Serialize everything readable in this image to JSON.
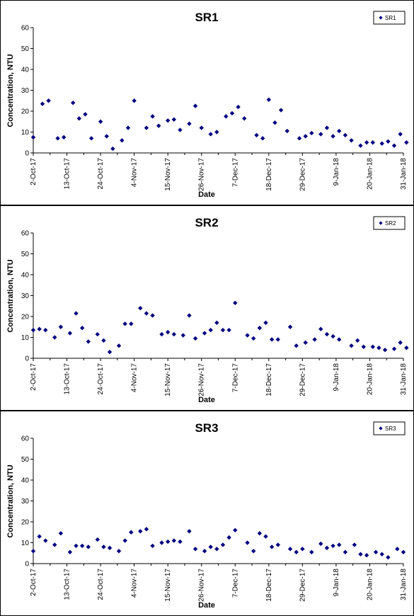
{
  "chart_data": [
    {
      "type": "scatter",
      "title": "SR1",
      "xlabel": "Date",
      "ylabel": "Concentration, NTU",
      "ylim": [
        0,
        60
      ],
      "yticks": [
        0,
        10,
        20,
        30,
        40,
        50,
        60
      ],
      "xlim": [
        "2017-10-02",
        "2018-01-31"
      ],
      "xtick_labels": [
        "2-Oct-17",
        "13-Oct-17",
        "24-Oct-17",
        "4-Nov-17",
        "15-Nov-17",
        "26-Nov-17",
        "7-Dec-17",
        "18-Dec-17",
        "29-Dec-17",
        "9-Jan-18",
        "20-Jan-18",
        "31-Jan-18"
      ],
      "legend": "top-right",
      "grid": false,
      "marker_color": "#000080",
      "series": [
        {
          "name": "SR1",
          "x": [
            "2017-10-02",
            "2017-10-05",
            "2017-10-07",
            "2017-10-10",
            "2017-10-12",
            "2017-10-15",
            "2017-10-17",
            "2017-10-19",
            "2017-10-21",
            "2017-10-24",
            "2017-10-26",
            "2017-10-28",
            "2017-10-31",
            "2017-11-02",
            "2017-11-04",
            "2017-11-08",
            "2017-11-10",
            "2017-11-12",
            "2017-11-15",
            "2017-11-17",
            "2017-11-19",
            "2017-11-22",
            "2017-11-24",
            "2017-11-26",
            "2017-11-29",
            "2017-12-01",
            "2017-12-04",
            "2017-12-06",
            "2017-12-08",
            "2017-12-10",
            "2017-12-14",
            "2017-12-16",
            "2017-12-18",
            "2017-12-20",
            "2017-12-22",
            "2017-12-24",
            "2017-12-28",
            "2017-12-30",
            "2018-01-01",
            "2018-01-04",
            "2018-01-06",
            "2018-01-08",
            "2018-01-10",
            "2018-01-12",
            "2018-01-14",
            "2018-01-17",
            "2018-01-19",
            "2018-01-21",
            "2018-01-24",
            "2018-01-26",
            "2018-01-28",
            "2018-01-30",
            "2018-02-01"
          ],
          "y": [
            7.5,
            23.5,
            25,
            7,
            7.5,
            24,
            16.5,
            18.5,
            7,
            15,
            8,
            2,
            6,
            12,
            25,
            12,
            17.5,
            13,
            15.5,
            16,
            11,
            14,
            22.5,
            12,
            9,
            10,
            17.5,
            19,
            22,
            16.5,
            8.5,
            7,
            25.5,
            14.5,
            20.5,
            10.5,
            7,
            8,
            9.5,
            9,
            12,
            8,
            10.5,
            8.5,
            6,
            3.5,
            5,
            5,
            4.5,
            5.5,
            3.5,
            9,
            5
          ]
        }
      ]
    },
    {
      "type": "scatter",
      "title": "SR2",
      "xlabel": "Date",
      "ylabel": "Concentration, NTU",
      "ylim": [
        0,
        60
      ],
      "yticks": [
        0,
        10,
        20,
        30,
        40,
        50,
        60
      ],
      "xlim": [
        "2017-10-02",
        "2018-01-31"
      ],
      "xtick_labels": [
        "2-Oct-17",
        "13-Oct-17",
        "24-Oct-17",
        "4-Nov-17",
        "15-Nov-17",
        "26-Nov-17",
        "7-Dec-17",
        "18-Dec-17",
        "29-Dec-17",
        "9-Jan-18",
        "20-Jan-18",
        "31-Jan-18"
      ],
      "legend": "top-right",
      "grid": false,
      "marker_color": "#000080",
      "series": [
        {
          "name": "SR2",
          "x": [
            "2017-10-02",
            "2017-10-04",
            "2017-10-06",
            "2017-10-09",
            "2017-10-11",
            "2017-10-14",
            "2017-10-16",
            "2017-10-18",
            "2017-10-20",
            "2017-10-23",
            "2017-10-25",
            "2017-10-27",
            "2017-10-30",
            "2017-11-01",
            "2017-11-03",
            "2017-11-06",
            "2017-11-08",
            "2017-11-10",
            "2017-11-13",
            "2017-11-15",
            "2017-11-17",
            "2017-11-20",
            "2017-11-22",
            "2017-11-24",
            "2017-11-27",
            "2017-11-29",
            "2017-12-01",
            "2017-12-03",
            "2017-12-05",
            "2017-12-07",
            "2017-12-11",
            "2017-12-13",
            "2017-12-15",
            "2017-12-17",
            "2017-12-19",
            "2017-12-21",
            "2017-12-25",
            "2017-12-27",
            "2017-12-30",
            "2018-01-02",
            "2018-01-04",
            "2018-01-06",
            "2018-01-08",
            "2018-01-10",
            "2018-01-14",
            "2018-01-16",
            "2018-01-18",
            "2018-01-21",
            "2018-01-23",
            "2018-01-25",
            "2018-01-28",
            "2018-01-30",
            "2018-02-01"
          ],
          "y": [
            13.5,
            14,
            13.5,
            10,
            15,
            12,
            21.5,
            14.5,
            8,
            11.5,
            8.5,
            3,
            6,
            16.5,
            16.5,
            24,
            21.5,
            20.5,
            11.5,
            12.5,
            11.5,
            11,
            20.5,
            9.5,
            12,
            13.5,
            17,
            13.5,
            13.5,
            26.5,
            11,
            9.5,
            14.5,
            17,
            9,
            9,
            15,
            6,
            7.5,
            9,
            14,
            11.5,
            10.5,
            9,
            6,
            8.5,
            5.5,
            5.5,
            5,
            4,
            4.5,
            7.5,
            5
          ]
        }
      ]
    },
    {
      "type": "scatter",
      "title": "SR3",
      "xlabel": "Date",
      "ylabel": "Concentration, NTU",
      "ylim": [
        0,
        60
      ],
      "yticks": [
        0,
        10,
        20,
        30,
        40,
        50,
        60
      ],
      "xlim": [
        "2017-10-02",
        "2018-01-31"
      ],
      "xtick_labels": [
        "2-Oct-17",
        "13-Oct-17",
        "24-Oct-17",
        "4-Nov-17",
        "15-Nov-17",
        "26-Nov-17",
        "7-Dec-17",
        "18-Dec-17",
        "29-Dec-17",
        "9-Jan-18",
        "20-Jan-18",
        "31-Jan-18"
      ],
      "legend": "top-right",
      "grid": false,
      "marker_color": "#000080",
      "series": [
        {
          "name": "SR3",
          "x": [
            "2017-10-02",
            "2017-10-04",
            "2017-10-06",
            "2017-10-09",
            "2017-10-11",
            "2017-10-14",
            "2017-10-16",
            "2017-10-18",
            "2017-10-20",
            "2017-10-23",
            "2017-10-25",
            "2017-10-27",
            "2017-10-30",
            "2017-11-01",
            "2017-11-03",
            "2017-11-06",
            "2017-11-08",
            "2017-11-10",
            "2017-11-13",
            "2017-11-15",
            "2017-11-17",
            "2017-11-19",
            "2017-11-22",
            "2017-11-24",
            "2017-11-27",
            "2017-11-29",
            "2017-12-01",
            "2017-12-03",
            "2017-12-05",
            "2017-12-07",
            "2017-12-11",
            "2017-12-13",
            "2017-12-15",
            "2017-12-17",
            "2017-12-19",
            "2017-12-21",
            "2017-12-25",
            "2017-12-27",
            "2017-12-29",
            "2018-01-01",
            "2018-01-04",
            "2018-01-06",
            "2018-01-08",
            "2018-01-10",
            "2018-01-12",
            "2018-01-15",
            "2018-01-17",
            "2018-01-19",
            "2018-01-22",
            "2018-01-24",
            "2018-01-26",
            "2018-01-29",
            "2018-01-31"
          ],
          "y": [
            6,
            13,
            11,
            9,
            14.5,
            5.5,
            8.5,
            8.5,
            8,
            11.5,
            8,
            7.5,
            6,
            11,
            15,
            15.5,
            16.5,
            8.5,
            10,
            10.5,
            11,
            10.5,
            15.5,
            7,
            6,
            8,
            7,
            9,
            12.5,
            16,
            10,
            6,
            14.5,
            13,
            8,
            9,
            7,
            5.5,
            7,
            5.5,
            9.5,
            7.5,
            8.5,
            9,
            5.5,
            9,
            4.5,
            4,
            5.5,
            4.5,
            3,
            7,
            5.5
          ]
        }
      ]
    }
  ]
}
